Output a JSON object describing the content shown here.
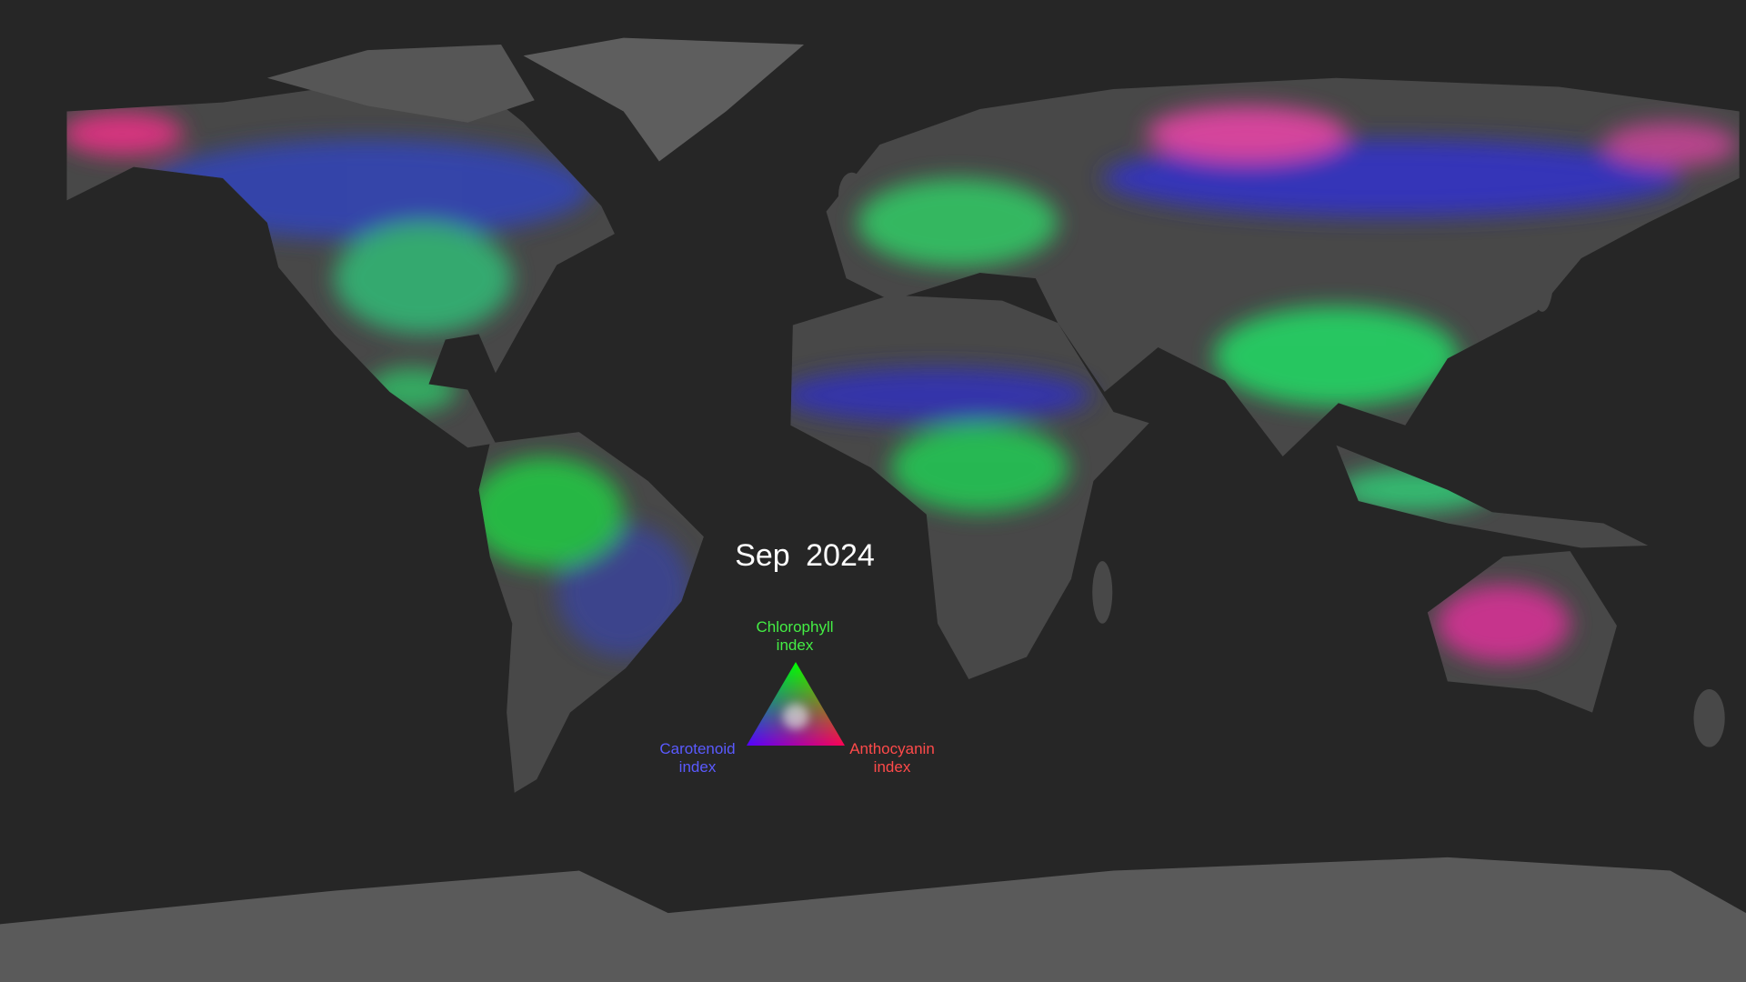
{
  "title": "Sep 2024",
  "legend": {
    "top": {
      "line1": "Chlorophyll",
      "line2": "index",
      "color": "#44ee44"
    },
    "left": {
      "line1": "Carotenoid",
      "line2": "index",
      "color": "#5a5aff"
    },
    "right": {
      "line1": "Anthocyanin",
      "line2": "index",
      "color": "#ff4a4a"
    }
  },
  "colors": {
    "ocean": "#262626",
    "land": "#4a4a4a",
    "ice": "#6a6a6a",
    "chlorophyll": "#33ee66",
    "carotenoid": "#3344cc",
    "anthocyanin": "#ee3399"
  }
}
